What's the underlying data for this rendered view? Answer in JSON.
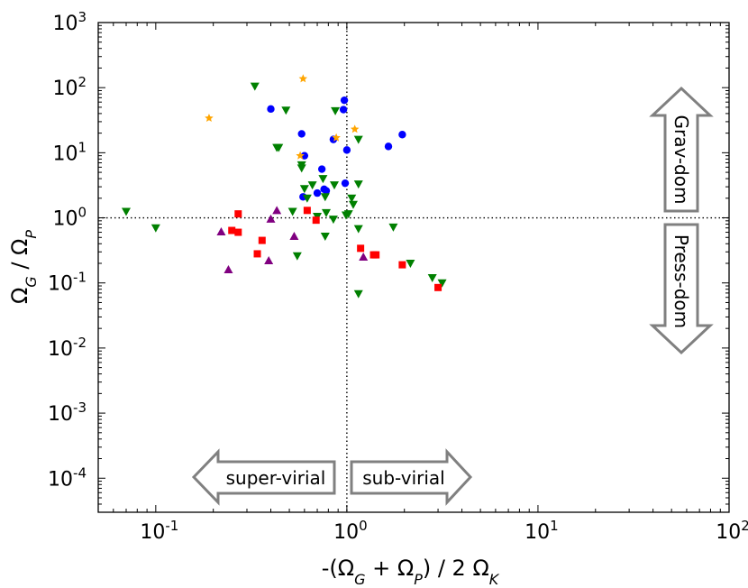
{
  "chart_data": {
    "type": "scatter",
    "title": "",
    "xscale": "log",
    "yscale": "log",
    "xlim": [
      0.05,
      100
    ],
    "ylim": [
      3e-05,
      1000
    ],
    "xlabel": "-(Ω_G + Ω_P) / 2 Ω_K",
    "ylabel": "Ω_G / Ω_P",
    "xlabel_parts": {
      "prefix": "-(Ω",
      "s1": "G",
      "mid": " + Ω",
      "s2": "P",
      "mid2": ") / 2 Ω",
      "s3": "K"
    },
    "ylabel_parts": {
      "p1": "Ω",
      "s1": "G",
      "mid": " / Ω",
      "s2": "P"
    },
    "x_ticks": [
      {
        "value": 0.1,
        "base": "10",
        "exp": "-1"
      },
      {
        "value": 1,
        "base": "10",
        "exp": "0"
      },
      {
        "value": 10,
        "base": "10",
        "exp": "1"
      },
      {
        "value": 100,
        "base": "10",
        "exp": "2"
      }
    ],
    "y_ticks": [
      {
        "value": 0.0001,
        "base": "10",
        "exp": "-4"
      },
      {
        "value": 0.001,
        "base": "10",
        "exp": "-3"
      },
      {
        "value": 0.01,
        "base": "10",
        "exp": "-2"
      },
      {
        "value": 0.1,
        "base": "10",
        "exp": "-1"
      },
      {
        "value": 1,
        "base": "10",
        "exp": "0"
      },
      {
        "value": 10,
        "base": "10",
        "exp": "1"
      },
      {
        "value": 100,
        "base": "10",
        "exp": "2"
      },
      {
        "value": 1000,
        "base": "10",
        "exp": "3"
      }
    ],
    "reference_lines": {
      "x": 1,
      "y": 1,
      "style": "dotted"
    },
    "annotations": [
      {
        "text": "Grav-dom",
        "direction": "up"
      },
      {
        "text": "Press-dom",
        "direction": "down"
      },
      {
        "text": "super-virial",
        "direction": "left"
      },
      {
        "text": "sub-virial",
        "direction": "right"
      }
    ],
    "series": [
      {
        "name": "blue circles",
        "marker": "circle",
        "color": "#0000ff",
        "points": [
          [
            0.4,
            47
          ],
          [
            0.58,
            19.5
          ],
          [
            0.6,
            9
          ],
          [
            0.85,
            16
          ],
          [
            0.96,
            46
          ],
          [
            0.97,
            64
          ],
          [
            1.0,
            11
          ],
          [
            1.65,
            12.5
          ],
          [
            1.95,
            19
          ],
          [
            0.59,
            2.1
          ],
          [
            0.7,
            2.4
          ],
          [
            0.76,
            2.75
          ],
          [
            0.78,
            2.6
          ],
          [
            0.98,
            3.4
          ],
          [
            0.74,
            5.6
          ]
        ]
      },
      {
        "name": "green triangles",
        "marker": "triangle-down",
        "color": "#008000",
        "points": [
          [
            0.07,
            1.25
          ],
          [
            0.1,
            0.7
          ],
          [
            0.33,
            105
          ],
          [
            0.48,
            45
          ],
          [
            0.43,
            12
          ],
          [
            0.44,
            12
          ],
          [
            0.87,
            44
          ],
          [
            1.15,
            16
          ],
          [
            0.58,
            6.5
          ],
          [
            0.58,
            5.8
          ],
          [
            0.6,
            2.8
          ],
          [
            0.66,
            3.2
          ],
          [
            0.75,
            4
          ],
          [
            0.77,
            2.1
          ],
          [
            0.86,
            3.2
          ],
          [
            0.62,
            2
          ],
          [
            0.7,
            1.05
          ],
          [
            0.78,
            1.2
          ],
          [
            0.85,
            0.95
          ],
          [
            0.99,
            1.1
          ],
          [
            1.02,
            1.15
          ],
          [
            1.06,
            2
          ],
          [
            1.08,
            1.6
          ],
          [
            1.15,
            3.3
          ],
          [
            0.52,
            1.25
          ],
          [
            0.77,
            0.52
          ],
          [
            0.55,
            0.26
          ],
          [
            1.15,
            0.68
          ],
          [
            1.75,
            0.72
          ],
          [
            2.15,
            0.2
          ],
          [
            2.8,
            0.12
          ],
          [
            3.15,
            0.1
          ],
          [
            1.15,
            0.068
          ]
        ]
      },
      {
        "name": "red squares",
        "marker": "square",
        "color": "#ff0000",
        "points": [
          [
            0.27,
            1.15
          ],
          [
            0.25,
            0.64
          ],
          [
            0.27,
            0.6
          ],
          [
            0.36,
            0.45
          ],
          [
            0.34,
            0.28
          ],
          [
            0.62,
            1.3
          ],
          [
            0.69,
            0.92
          ],
          [
            1.18,
            0.34
          ],
          [
            1.38,
            0.27
          ],
          [
            1.42,
            0.27
          ],
          [
            1.95,
            0.19
          ],
          [
            3.0,
            0.085
          ]
        ]
      },
      {
        "name": "purple triangles",
        "marker": "triangle-up",
        "color": "#800080",
        "points": [
          [
            0.22,
            0.61
          ],
          [
            0.24,
            0.16
          ],
          [
            0.4,
            0.96
          ],
          [
            0.43,
            1.3
          ],
          [
            0.39,
            0.22
          ],
          [
            0.53,
            0.52
          ],
          [
            1.22,
            0.25
          ]
        ]
      },
      {
        "name": "orange stars",
        "marker": "star",
        "color": "#ffa500",
        "points": [
          [
            0.19,
            34
          ],
          [
            0.59,
            137
          ],
          [
            0.57,
            9
          ],
          [
            0.88,
            17
          ],
          [
            1.1,
            23
          ]
        ]
      }
    ]
  }
}
